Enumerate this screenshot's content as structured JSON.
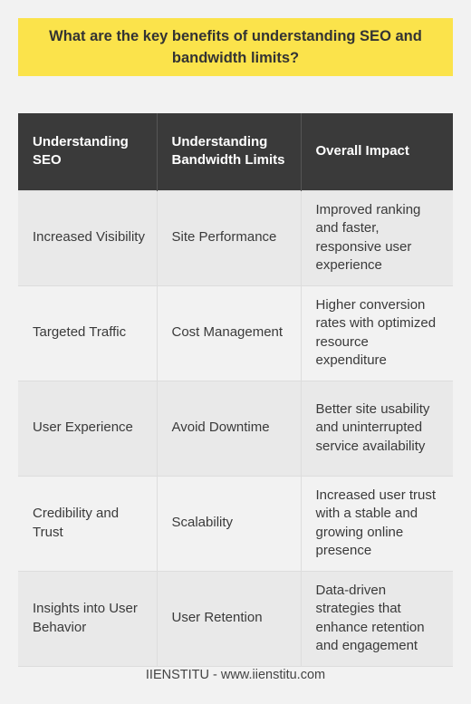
{
  "title": "What are the key benefits of understanding SEO and bandwidth limits?",
  "table": {
    "headers": [
      "Understanding SEO",
      "Understanding Bandwidth Limits",
      "Overall Impact"
    ],
    "rows": [
      [
        "Increased Visibility",
        "Site Performance",
        "Improved ranking and faster, responsive user experience"
      ],
      [
        "Targeted Traffic",
        "Cost Management",
        "Higher conversion rates with optimized resource expenditure"
      ],
      [
        "User Experience",
        "Avoid Downtime",
        "Better site usability and uninterrupted service availability"
      ],
      [
        "Credibility and Trust",
        "Scalability",
        "Increased user trust with a stable and growing online presence"
      ],
      [
        "Insights into User Behavior",
        "User Retention",
        "Data-driven strategies that enhance retention and engagement"
      ]
    ]
  },
  "footer": "IIENSTITU - www.iienstitu.com",
  "colors": {
    "title_bg": "#fbe34b",
    "header_bg": "#3a3a3a",
    "row_odd_bg": "#e9e9e9",
    "row_even_bg": "#f2f2f2",
    "page_bg": "#f2f2f2"
  }
}
